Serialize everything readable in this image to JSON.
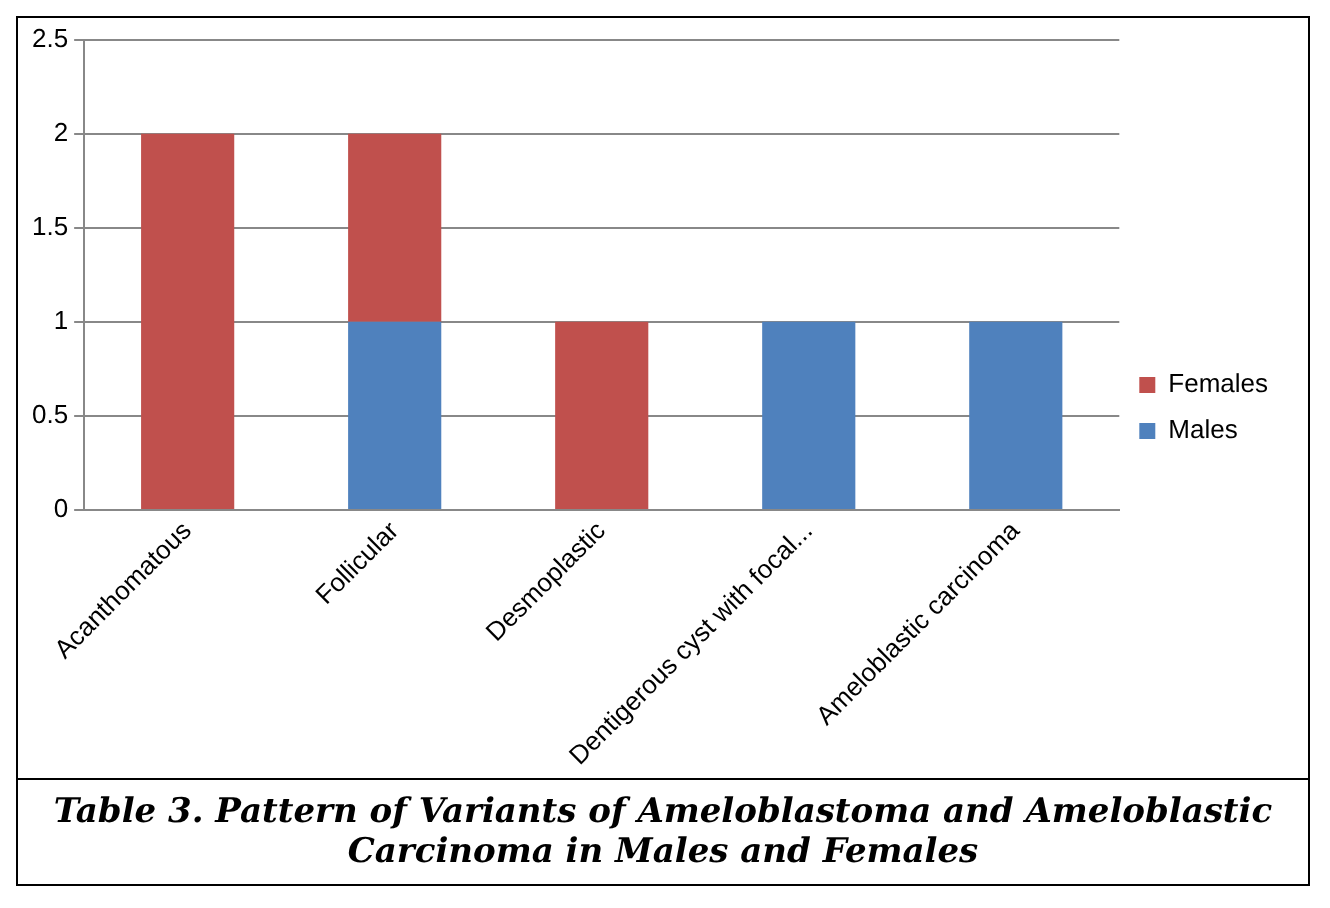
{
  "chart_data": {
    "type": "bar",
    "stacked": true,
    "categories": [
      "Acanthomatous",
      "Follicular",
      "Desmoplastic",
      "Dentigerous cyst with focal...",
      "Ameloblastic carcinoma"
    ],
    "series": [
      {
        "name": "Males",
        "color": "#4f81bd",
        "values": [
          0,
          1,
          0,
          1,
          1
        ]
      },
      {
        "name": "Females",
        "color": "#c0504d",
        "values": [
          2,
          1,
          1,
          0,
          0
        ]
      }
    ],
    "ylim": [
      0,
      2.5
    ],
    "yticks": [
      0,
      0.5,
      1,
      1.5,
      2,
      2.5
    ],
    "grid": "y",
    "legend": "right",
    "annotations": [
      "Table 3. Pattern of Variants of Ameloblastoma and Ameloblastic Carcinoma in Males and Females"
    ]
  }
}
